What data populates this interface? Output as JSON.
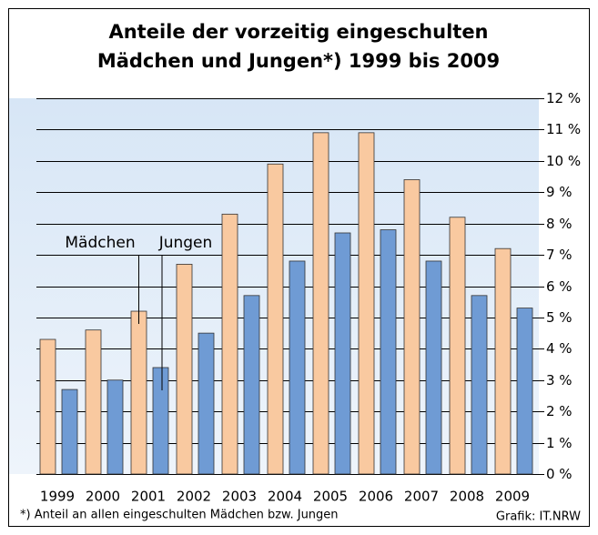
{
  "chart_data": {
    "type": "bar",
    "title": [
      "Anteile der vorzeitig eingeschulten",
      "Mädchen und Jungen*) 1999 bis 2009"
    ],
    "categories": [
      "1999",
      "2000",
      "2001",
      "2002",
      "2003",
      "2004",
      "2005",
      "2006",
      "2007",
      "2008",
      "2009"
    ],
    "series": [
      {
        "name": "Mädchen",
        "color": "#f9c9a0",
        "values": [
          4.3,
          4.6,
          5.2,
          6.7,
          8.3,
          9.9,
          10.9,
          10.9,
          9.4,
          8.2,
          7.2
        ]
      },
      {
        "name": "Jungen",
        "color": "#6f9bd4",
        "values": [
          2.7,
          3.0,
          3.4,
          4.5,
          5.7,
          6.8,
          7.7,
          7.8,
          6.8,
          5.7,
          5.3
        ]
      }
    ],
    "ylim": [
      0,
      12
    ],
    "yticks": [
      {
        "value": 0,
        "label": "0 %"
      },
      {
        "value": 1,
        "label": "1 %"
      },
      {
        "value": 2,
        "label": "2 %"
      },
      {
        "value": 3,
        "label": "3 %"
      },
      {
        "value": 4,
        "label": "4 %"
      },
      {
        "value": 5,
        "label": "5 %"
      },
      {
        "value": 6,
        "label": "6 %"
      },
      {
        "value": 7,
        "label": "7 %"
      },
      {
        "value": 8,
        "label": "8 %"
      },
      {
        "value": 9,
        "label": "9 %"
      },
      {
        "value": 10,
        "label": "10 %"
      },
      {
        "value": 11,
        "label": "11 %"
      },
      {
        "value": 12,
        "label": "12 %"
      }
    ],
    "grid": true,
    "footnote": "*) Anteil an allen eingeschulten Mädchen bzw. Jungen",
    "source": "Grafik: IT.NRW"
  }
}
